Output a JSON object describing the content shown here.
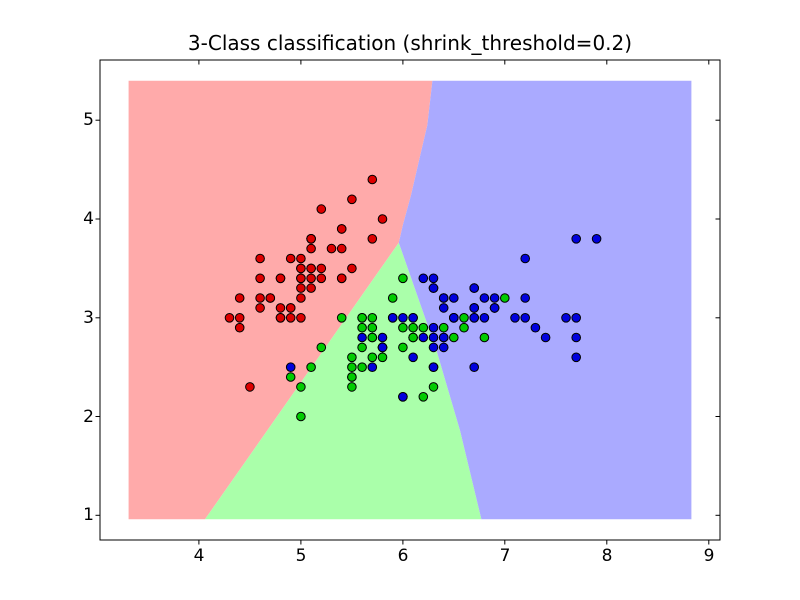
{
  "title": "3-Class classification (shrink_threshold=0.2)",
  "chart_data": {
    "type": "scatter",
    "title": "3-Class classification (shrink_threshold=0.2)",
    "xlabel": "",
    "ylabel": "",
    "grid": false,
    "legend": "none",
    "xlim": [
      3.03,
      9.11
    ],
    "ylim": [
      0.75,
      5.61
    ],
    "x_ticks": [
      "4",
      "5",
      "6",
      "7",
      "8",
      "9"
    ],
    "x_tick_values": [
      4,
      5,
      6,
      7,
      8,
      9
    ],
    "y_ticks": [
      "1",
      "2",
      "3",
      "4",
      "5"
    ],
    "y_tick_values": [
      1,
      2,
      3,
      4,
      5
    ],
    "background_color": "#ffffff",
    "axes_edge_color": "#000000",
    "mesh_extent": {
      "x": [
        3.31,
        8.83
      ],
      "y": [
        0.96,
        5.4
      ]
    },
    "region_colors": [
      "#ffaaaa",
      "#aaffaa",
      "#aaaaff"
    ],
    "point_edge_color": "#000000",
    "boundaries": {
      "junction": [
        5.96,
        3.76
      ],
      "red_blue": [
        [
          6.29,
          5.4
        ],
        [
          6.24,
          4.95
        ],
        [
          6.16,
          4.6
        ],
        [
          6.08,
          4.24
        ],
        [
          6.0,
          3.94
        ],
        [
          5.96,
          3.76
        ]
      ],
      "red_green": [
        [
          5.96,
          3.76
        ],
        [
          4.06,
          0.96
        ]
      ],
      "green_blue": [
        [
          5.96,
          3.76
        ],
        [
          6.33,
          2.67
        ],
        [
          6.56,
          1.86
        ],
        [
          6.77,
          0.96
        ]
      ]
    },
    "series": [
      {
        "name": "class_0",
        "color": "#dd0000",
        "points": [
          [
            5.1,
            3.5
          ],
          [
            4.9,
            3.0
          ],
          [
            4.7,
            3.2
          ],
          [
            4.6,
            3.1
          ],
          [
            5.0,
            3.6
          ],
          [
            5.4,
            3.9
          ],
          [
            4.6,
            3.4
          ],
          [
            5.0,
            3.4
          ],
          [
            4.4,
            2.9
          ],
          [
            4.9,
            3.1
          ],
          [
            5.4,
            3.7
          ],
          [
            4.8,
            3.4
          ],
          [
            4.8,
            3.0
          ],
          [
            4.3,
            3.0
          ],
          [
            5.8,
            4.0
          ],
          [
            5.7,
            4.4
          ],
          [
            5.4,
            3.9
          ],
          [
            5.1,
            3.5
          ],
          [
            5.7,
            3.8
          ],
          [
            5.1,
            3.8
          ],
          [
            5.4,
            3.4
          ],
          [
            5.1,
            3.7
          ],
          [
            4.6,
            3.6
          ],
          [
            5.1,
            3.3
          ],
          [
            4.8,
            3.4
          ],
          [
            5.0,
            3.0
          ],
          [
            5.0,
            3.4
          ],
          [
            5.2,
            3.5
          ],
          [
            5.2,
            3.4
          ],
          [
            4.7,
            3.2
          ],
          [
            4.8,
            3.1
          ],
          [
            5.4,
            3.4
          ],
          [
            5.2,
            4.1
          ],
          [
            5.5,
            4.2
          ],
          [
            4.9,
            3.1
          ],
          [
            5.0,
            3.2
          ],
          [
            5.5,
            3.5
          ],
          [
            4.9,
            3.6
          ],
          [
            4.4,
            3.0
          ],
          [
            5.1,
            3.4
          ],
          [
            5.0,
            3.5
          ],
          [
            4.5,
            2.3
          ],
          [
            4.4,
            3.2
          ],
          [
            5.0,
            3.5
          ],
          [
            5.1,
            3.8
          ],
          [
            4.8,
            3.0
          ],
          [
            5.1,
            3.8
          ],
          [
            4.6,
            3.2
          ],
          [
            5.3,
            3.7
          ],
          [
            5.0,
            3.3
          ]
        ]
      },
      {
        "name": "class_1",
        "color": "#00cc00",
        "points": [
          [
            7.0,
            3.2
          ],
          [
            6.4,
            3.2
          ],
          [
            6.9,
            3.1
          ],
          [
            5.5,
            2.3
          ],
          [
            6.5,
            2.8
          ],
          [
            5.7,
            2.8
          ],
          [
            6.3,
            3.3
          ],
          [
            4.9,
            2.4
          ],
          [
            6.6,
            2.9
          ],
          [
            5.2,
            2.7
          ],
          [
            5.0,
            2.0
          ],
          [
            5.9,
            3.0
          ],
          [
            6.0,
            2.2
          ],
          [
            6.1,
            2.9
          ],
          [
            5.6,
            2.9
          ],
          [
            6.7,
            3.1
          ],
          [
            5.6,
            3.0
          ],
          [
            5.8,
            2.7
          ],
          [
            6.2,
            2.2
          ],
          [
            5.6,
            2.5
          ],
          [
            5.9,
            3.2
          ],
          [
            6.1,
            2.8
          ],
          [
            6.3,
            2.5
          ],
          [
            6.1,
            2.8
          ],
          [
            6.4,
            2.9
          ],
          [
            6.6,
            3.0
          ],
          [
            6.8,
            2.8
          ],
          [
            6.7,
            3.0
          ],
          [
            6.0,
            2.9
          ],
          [
            5.7,
            2.6
          ],
          [
            5.5,
            2.4
          ],
          [
            5.5,
            2.4
          ],
          [
            5.8,
            2.7
          ],
          [
            6.0,
            2.7
          ],
          [
            5.4,
            3.0
          ],
          [
            6.0,
            3.4
          ],
          [
            6.7,
            3.1
          ],
          [
            6.3,
            2.3
          ],
          [
            5.6,
            3.0
          ],
          [
            5.5,
            2.5
          ],
          [
            5.5,
            2.6
          ],
          [
            6.1,
            3.0
          ],
          [
            5.8,
            2.6
          ],
          [
            5.0,
            2.3
          ],
          [
            5.6,
            2.7
          ],
          [
            5.7,
            3.0
          ],
          [
            5.7,
            2.9
          ],
          [
            6.2,
            2.9
          ],
          [
            5.1,
            2.5
          ],
          [
            5.7,
            2.8
          ]
        ]
      },
      {
        "name": "class_2",
        "color": "#0000dd",
        "points": [
          [
            6.3,
            3.3
          ],
          [
            5.8,
            2.7
          ],
          [
            7.1,
            3.0
          ],
          [
            6.3,
            2.9
          ],
          [
            6.5,
            3.0
          ],
          [
            7.6,
            3.0
          ],
          [
            4.9,
            2.5
          ],
          [
            7.3,
            2.9
          ],
          [
            6.7,
            2.5
          ],
          [
            7.2,
            3.6
          ],
          [
            6.5,
            3.2
          ],
          [
            6.4,
            2.7
          ],
          [
            6.8,
            3.0
          ],
          [
            5.7,
            2.5
          ],
          [
            5.8,
            2.8
          ],
          [
            6.4,
            3.2
          ],
          [
            6.5,
            3.0
          ],
          [
            7.7,
            3.8
          ],
          [
            7.7,
            2.6
          ],
          [
            6.0,
            2.2
          ],
          [
            6.9,
            3.2
          ],
          [
            5.6,
            2.8
          ],
          [
            7.7,
            2.8
          ],
          [
            6.3,
            2.7
          ],
          [
            6.7,
            3.3
          ],
          [
            7.2,
            3.2
          ],
          [
            6.2,
            2.8
          ],
          [
            6.1,
            3.0
          ],
          [
            6.4,
            2.8
          ],
          [
            7.2,
            3.0
          ],
          [
            7.4,
            2.8
          ],
          [
            7.9,
            3.8
          ],
          [
            6.4,
            2.8
          ],
          [
            6.3,
            2.8
          ],
          [
            6.1,
            2.6
          ],
          [
            7.7,
            3.0
          ],
          [
            6.3,
            3.4
          ],
          [
            6.4,
            3.1
          ],
          [
            6.0,
            3.0
          ],
          [
            6.9,
            3.1
          ],
          [
            6.7,
            3.1
          ],
          [
            6.9,
            3.1
          ],
          [
            5.8,
            2.7
          ],
          [
            6.8,
            3.2
          ],
          [
            6.7,
            3.3
          ],
          [
            6.7,
            3.0
          ],
          [
            6.3,
            2.5
          ],
          [
            6.5,
            3.0
          ],
          [
            6.2,
            3.4
          ],
          [
            5.9,
            3.0
          ]
        ]
      }
    ]
  }
}
